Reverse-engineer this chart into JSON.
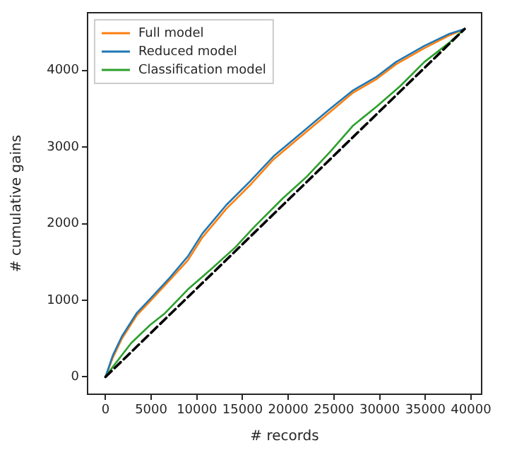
{
  "chart_data": {
    "type": "line",
    "xlabel": "# records",
    "ylabel": "# cumulative gains",
    "xlim": [
      -1960,
      41160
    ],
    "ylim": [
      -226,
      4752
    ],
    "xticks": [
      0,
      5000,
      10000,
      15000,
      20000,
      25000,
      30000,
      35000,
      40000
    ],
    "yticks": [
      0,
      1000,
      2000,
      3000,
      4000
    ],
    "grid": false,
    "legend": "top left",
    "marker": "none",
    "series": [
      {
        "name": "Full model",
        "color": "#ff7f0e",
        "x": [
          0,
          800,
          1800,
          3400,
          4900,
          7000,
          9000,
          10600,
          13200,
          15800,
          18400,
          20900,
          24600,
          27100,
          29700,
          31800,
          34900,
          37500,
          39300
        ],
        "values": [
          0,
          250,
          500,
          800,
          990,
          1260,
          1520,
          1820,
          2190,
          2500,
          2840,
          3090,
          3460,
          3710,
          3890,
          4080,
          4290,
          4450,
          4540
        ]
      },
      {
        "name": "Reduced model",
        "color": "#1f77b4",
        "x": [
          0,
          800,
          1800,
          3400,
          4900,
          7000,
          9000,
          10600,
          13200,
          15800,
          18400,
          20900,
          24600,
          27100,
          29700,
          31800,
          34900,
          37500,
          39300
        ],
        "values": [
          0,
          280,
          530,
          830,
          1020,
          1290,
          1570,
          1870,
          2240,
          2550,
          2880,
          3130,
          3500,
          3740,
          3920,
          4110,
          4320,
          4470,
          4540
        ]
      },
      {
        "name": "Classification model",
        "color": "#2ca02c",
        "x": [
          0,
          800,
          2800,
          4900,
          6500,
          9000,
          11600,
          14200,
          16300,
          19400,
          22000,
          24600,
          27100,
          29700,
          32300,
          34900,
          37500,
          39300
        ],
        "values": [
          0,
          130,
          440,
          680,
          830,
          1140,
          1410,
          1690,
          1960,
          2330,
          2610,
          2940,
          3280,
          3530,
          3800,
          4110,
          4350,
          4540
        ]
      },
      {
        "color": "#000000",
        "line_style": "dashed",
        "x": [
          0,
          39300
        ],
        "values": [
          0,
          4540
        ]
      }
    ]
  }
}
